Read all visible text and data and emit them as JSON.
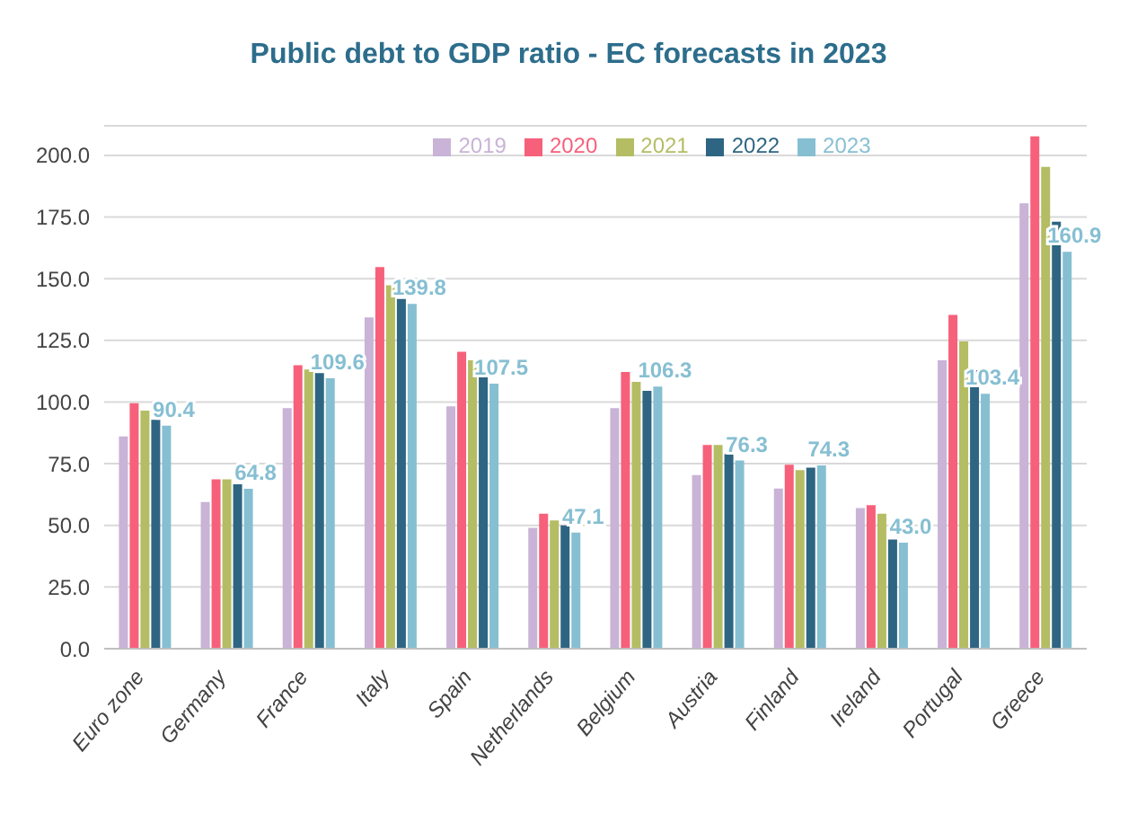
{
  "chart_data": {
    "type": "bar",
    "title": "Public debt to GDP ratio - EC forecasts in 2023",
    "categories": [
      "Euro zone",
      "Germany",
      "France",
      "Italy",
      "Spain",
      "Netherlands",
      "Belgium",
      "Austria",
      "Finland",
      "Ireland",
      "Portugal",
      "Greece"
    ],
    "series": [
      {
        "name": "2019",
        "color": "#c9b3d6",
        "values": [
          86.1,
          59.5,
          97.5,
          134.3,
          98.3,
          49.0,
          97.5,
          70.4,
          64.9,
          57.0,
          116.9,
          180.6
        ]
      },
      {
        "name": "2020",
        "color": "#f7607a",
        "values": [
          99.5,
          68.7,
          114.9,
          154.7,
          120.4,
          54.7,
          112.2,
          82.6,
          74.6,
          58.2,
          135.3,
          207.7
        ]
      },
      {
        "name": "2021",
        "color": "#b4bd63",
        "values": [
          96.5,
          68.7,
          113.2,
          147.3,
          116.9,
          52.0,
          108.2,
          82.6,
          72.4,
          54.7,
          124.6,
          195.3
        ]
      },
      {
        "name": "2022",
        "color": "#2e6582",
        "values": [
          92.8,
          66.7,
          111.7,
          141.8,
          111.7,
          50.0,
          104.5,
          78.9,
          73.4,
          44.3,
          112.9,
          173.1
        ]
      },
      {
        "name": "2023",
        "color": "#86bfd2",
        "values": [
          90.4,
          64.8,
          109.6,
          139.8,
          107.5,
          47.1,
          106.3,
          76.3,
          74.3,
          43.0,
          103.4,
          160.9
        ],
        "value_labels": [
          "90.4",
          "64.8",
          "109.6",
          "139.8",
          "107.5",
          "47.1",
          "106.3",
          "76.3",
          "74.3",
          "43.0",
          "103.4",
          "160.9"
        ]
      }
    ],
    "ylim": [
      0,
      212
    ],
    "yticks": [
      {
        "value": 0,
        "label": "0.0"
      },
      {
        "value": 25,
        "label": "25.0"
      },
      {
        "value": 50,
        "label": "50.0"
      },
      {
        "value": 75,
        "label": "75.0"
      },
      {
        "value": 100,
        "label": "100.0"
      },
      {
        "value": 125,
        "label": "125.0"
      },
      {
        "value": 150,
        "label": "150.0"
      },
      {
        "value": 175,
        "label": "175.0"
      },
      {
        "value": 200,
        "label": "200.0"
      }
    ],
    "grid": "y",
    "legend": "top"
  }
}
